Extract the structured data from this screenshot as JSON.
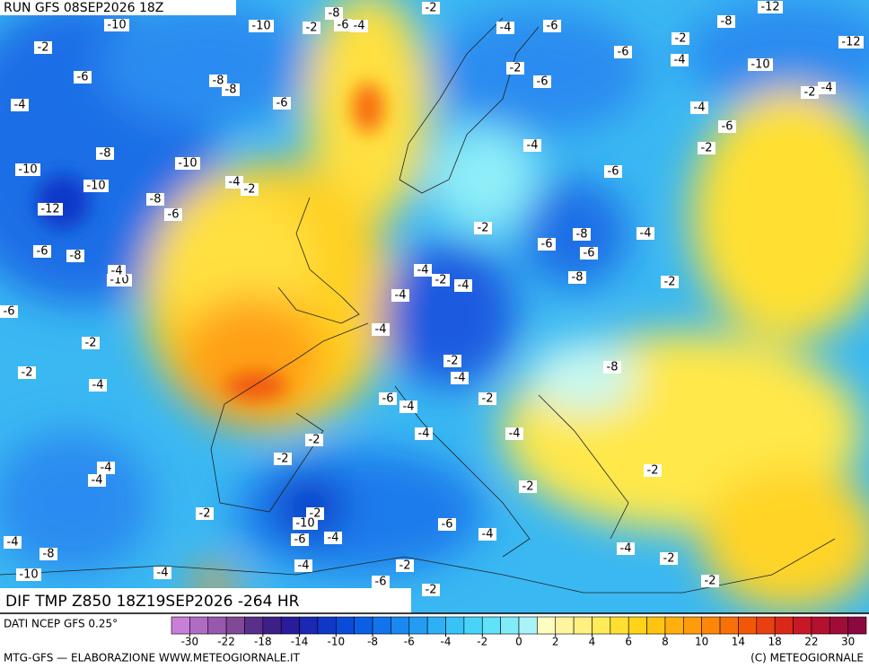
{
  "header": {
    "run": "RUN GFS 08SEP2026 18Z"
  },
  "map": {
    "title": "DIF TMP Z850 18Z19SEP2026 -264 HR",
    "contour_labels": [
      -10,
      -2,
      -10,
      -2,
      -8,
      -6,
      -4,
      -2,
      -4,
      -6,
      -8,
      -12,
      -2,
      -12,
      -6,
      -4,
      -10,
      -2,
      -6,
      -6,
      -8,
      -8,
      -2,
      -4,
      -4,
      -6,
      -4,
      -6,
      -4,
      -2,
      -8,
      -10,
      -10,
      -6,
      -10,
      -4,
      -2,
      -8,
      -6,
      -12,
      -2,
      -8,
      -4,
      -6,
      -6,
      -6,
      -8,
      -4,
      -2,
      -4,
      -8,
      -10,
      -4,
      -2,
      -6,
      -4,
      -2,
      -2,
      -8,
      -2,
      -4,
      -4,
      -6,
      -4,
      -2,
      -4,
      -4,
      -2,
      -2,
      -4,
      -4,
      -2,
      -2,
      -2,
      -2,
      -10,
      -6,
      -4,
      -4,
      -8,
      -6,
      -4,
      -4,
      -2,
      -4,
      -4,
      -2,
      -2,
      -10,
      -6,
      -2,
      -4
    ]
  },
  "legend": {
    "source": "DATI NCEP GFS 0.25°",
    "colors": [
      "#c87fd8",
      "#b06cc4",
      "#9858ad",
      "#804896",
      "#5a2f8a",
      "#3c2088",
      "#281c9c",
      "#1a28b4",
      "#1038c8",
      "#0a4cd8",
      "#0a60e4",
      "#1074ec",
      "#1a88f0",
      "#249cf4",
      "#2eb0f6",
      "#38c2f8",
      "#48d4f8",
      "#60e2f8",
      "#80ecf8",
      "#a8f4f8",
      "#fffcc0",
      "#fff4a0",
      "#fff080",
      "#ffea5a",
      "#ffe030",
      "#ffd418",
      "#ffc410",
      "#ffb00c",
      "#ff9c0a",
      "#ff8608",
      "#f87008",
      "#f05808",
      "#e84010",
      "#dc2818",
      "#c81828",
      "#b41030",
      "#a00c38",
      "#8c0840"
    ],
    "ticks": [
      -30,
      -22,
      -18,
      -14,
      -10,
      -8,
      -6,
      -4,
      -2,
      0,
      2,
      4,
      6,
      8,
      10,
      14,
      18,
      22,
      30
    ]
  },
  "footer": {
    "left": "MTG-GFS — ELABORAZIONE WWW.METEOGIORNALE.IT",
    "right": "(C) METEOGIORNALE"
  }
}
